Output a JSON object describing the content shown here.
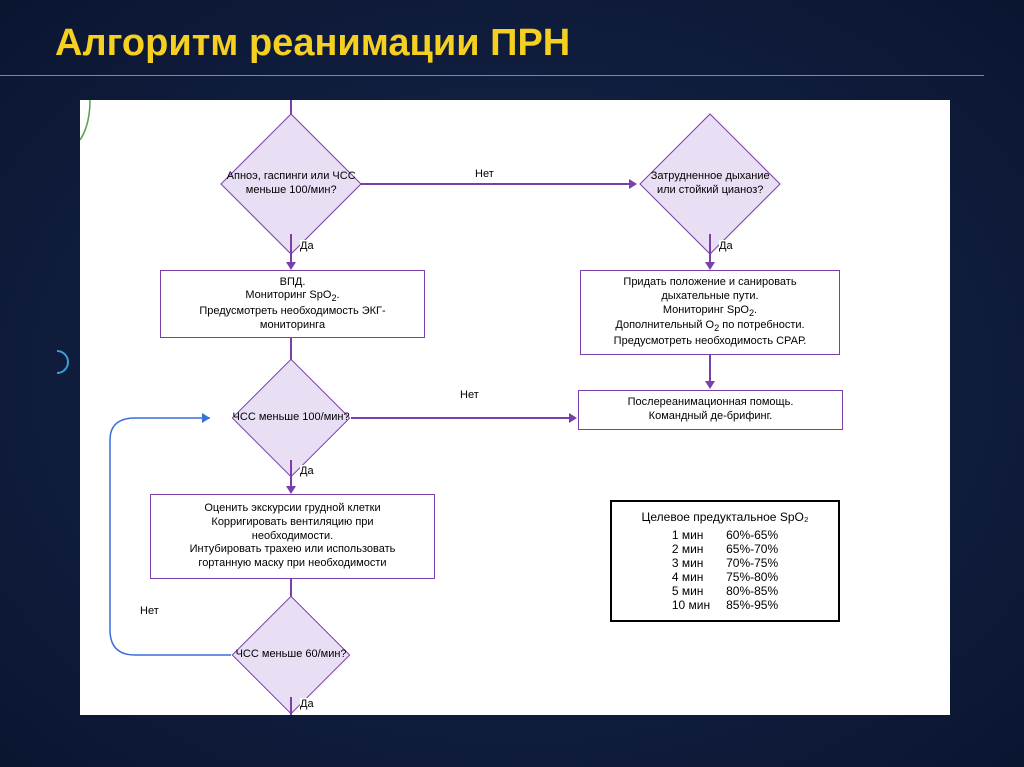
{
  "title": "Алгоритм реанимации ПРН",
  "colors": {
    "title": "#f5d020",
    "bg_outer": "#0a1530",
    "bg_inner": "#1a2850",
    "canvas": "#ffffff",
    "node_border": "#7a3fa8",
    "diamond_fill": "#e8dff5",
    "curve": "#3a6fd8"
  },
  "nodes": {
    "d1": {
      "type": "diamond",
      "text": "Апноэ, гаспинги или ЧСС\nменьше 100/мин?"
    },
    "d2": {
      "type": "diamond",
      "text": "Затрудненное дыхание\nили стойкий цианоз?"
    },
    "r1": {
      "type": "rect",
      "text": "ВПД.\nМониторинг SpO₂.\nПредусмотреть необходимость ЭКГ-\nмониторинга"
    },
    "r2": {
      "type": "rect",
      "text": "Придать положение и санировать\nдыхательные пути.\nМониторинг SpO₂.\nДополнительный О₂ по потребности.\nПредусмотреть необходимость СРАР."
    },
    "d3": {
      "type": "diamond",
      "text": "ЧСС меньше 100/мин?"
    },
    "r3": {
      "type": "rect",
      "text": "Послереанимационная помощь.\nКомандный де-брифинг."
    },
    "r4": {
      "type": "rect",
      "text": "Оценить экскурсии грудной клетки\nКорригировать вентиляцию при\nнеобходимости.\nИнтубировать трахею или использовать\nгортанную маску при необходимости"
    },
    "d4": {
      "type": "diamond",
      "text": "ЧСС меньше 60/мин?"
    }
  },
  "labels": {
    "yes": "Да",
    "no": "Нет"
  },
  "spo2": {
    "title": "Целевое предуктальное SpO₂",
    "rows": [
      {
        "time": "1 мин",
        "range": "60%-65%"
      },
      {
        "time": "2 мин",
        "range": "65%-70%"
      },
      {
        "time": "3 мин",
        "range": "70%-75%"
      },
      {
        "time": "4 мин",
        "range": "75%-80%"
      },
      {
        "time": "5 мин",
        "range": "80%-85%"
      },
      {
        "time": "10 мин",
        "range": "85%-95%"
      }
    ]
  }
}
